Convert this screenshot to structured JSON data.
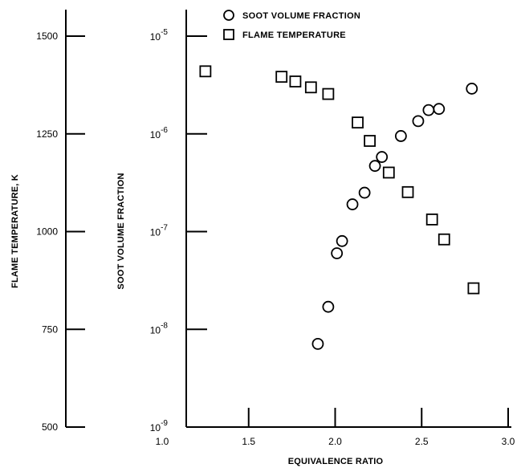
{
  "chart_data": {
    "type": "scatter",
    "xlabel": "EQUIVALENCE RATIO",
    "ylabel_left": "FLAME TEMPERATURE, K",
    "ylabel_right": "SOOT VOLUME FRACTION",
    "xlim": [
      1.0,
      3.0
    ],
    "x_ticks": [
      "1.0",
      "1.5",
      "2.0",
      "2.5",
      "3.0"
    ],
    "temperature_axis": {
      "range": [
        500,
        1500
      ],
      "ticks": [
        "500",
        "750",
        "1000",
        "1250",
        "1500"
      ]
    },
    "soot_axis": {
      "scale": "log",
      "range": [
        1e-09,
        1e-05
      ],
      "ticks": [
        {
          "base": "10",
          "exp": "-9"
        },
        {
          "base": "10",
          "exp": "-8"
        },
        {
          "base": "10",
          "exp": "-7"
        },
        {
          "base": "10",
          "exp": "-6"
        },
        {
          "base": "10",
          "exp": "-5"
        }
      ]
    },
    "legend": {
      "position": "top",
      "entries": [
        "SOOT VOLUME FRACTION",
        "FLAME TEMPERATURE"
      ]
    },
    "grid": false,
    "series": [
      {
        "name": "SOOT VOLUME FRACTION",
        "marker": "circle",
        "points": [
          {
            "x": 1.9,
            "y": 7.1e-09
          },
          {
            "x": 1.96,
            "y": 1.7e-08
          },
          {
            "x": 2.01,
            "y": 6e-08
          },
          {
            "x": 2.04,
            "y": 8e-08
          },
          {
            "x": 2.1,
            "y": 1.9e-07
          },
          {
            "x": 2.17,
            "y": 2.5e-07
          },
          {
            "x": 2.23,
            "y": 4.7e-07
          },
          {
            "x": 2.27,
            "y": 5.8e-07
          },
          {
            "x": 2.38,
            "y": 9.5e-07
          },
          {
            "x": 2.48,
            "y": 1.35e-06
          },
          {
            "x": 2.54,
            "y": 1.75e-06
          },
          {
            "x": 2.6,
            "y": 1.8e-06
          },
          {
            "x": 2.79,
            "y": 2.9e-06
          }
        ]
      },
      {
        "name": "FLAME TEMPERATURE",
        "marker": "square",
        "points": [
          {
            "x": 1.25,
            "y": 1410
          },
          {
            "x": 1.69,
            "y": 1396
          },
          {
            "x": 1.77,
            "y": 1384
          },
          {
            "x": 1.86,
            "y": 1369
          },
          {
            "x": 1.96,
            "y": 1352
          },
          {
            "x": 2.13,
            "y": 1279
          },
          {
            "x": 2.2,
            "y": 1232
          },
          {
            "x": 2.31,
            "y": 1151
          },
          {
            "x": 2.42,
            "y": 1101
          },
          {
            "x": 2.56,
            "y": 1031
          },
          {
            "x": 2.63,
            "y": 980
          },
          {
            "x": 2.8,
            "y": 855
          }
        ]
      }
    ]
  }
}
